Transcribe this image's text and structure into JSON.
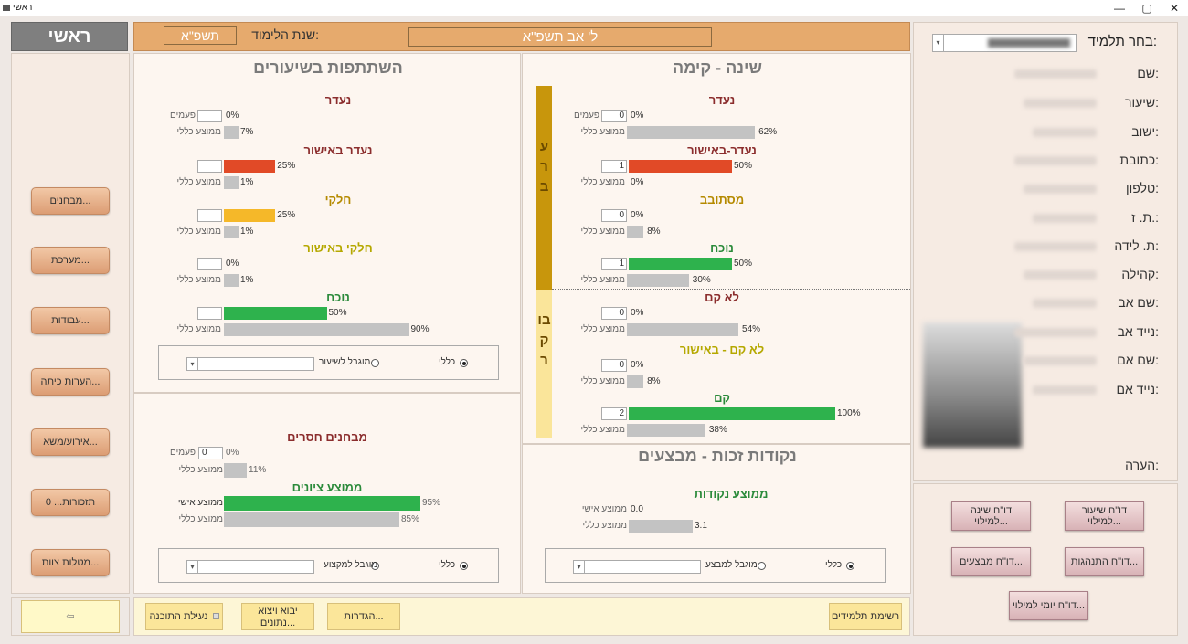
{
  "window": {
    "title": "ראשי",
    "min": "—",
    "max": "▢",
    "close": "✕"
  },
  "top": {
    "home": "ראשי",
    "year_label": "שנת הלימוד:",
    "year_value": "תשפ\"א",
    "date": "ל' אב תשפ\"א"
  },
  "student": {
    "select_label": "בחר תלמיד:",
    "fields": [
      "שם:",
      "שיעור:",
      "ישוב:",
      "כתובת:",
      "טלפון:",
      "ת. ז.:",
      "ת. לידה:",
      "קהילה:",
      "שם אב:",
      "נייד אב:",
      "שם אם:",
      "נייד אם:"
    ],
    "note_label": "הערה:"
  },
  "sleep": {
    "title": "שינה - קימה",
    "evening": "ערב",
    "morning": "בוקר",
    "rows": [
      {
        "label": "נעדר",
        "color": "#8b2d2d",
        "count": "0",
        "pct": "0%",
        "small1": "פעמים",
        "avg": "62%",
        "small2": "ממוצע כללי",
        "fill": 0,
        "avgfill": 62,
        "bar": "red"
      },
      {
        "label": "נעדר-באישור",
        "color": "#8b2d2d",
        "count": "1",
        "pct": "50%",
        "avg": "0%",
        "small2": "ממוצע כללי",
        "fill": 50,
        "avgfill": 0,
        "bar": "red"
      },
      {
        "label": "מסתובב",
        "color": "#b58a00",
        "count": "0",
        "pct": "0%",
        "avg": "8%",
        "small2": "ממוצע כללי",
        "fill": 0,
        "avgfill": 8,
        "bar": "yel"
      },
      {
        "label": "נוכח",
        "color": "#2a8a3a",
        "count": "1",
        "pct": "50%",
        "avg": "30%",
        "small2": "ממוצע כללי",
        "fill": 50,
        "avgfill": 30,
        "bar": "grn"
      },
      {
        "label": "לא קם",
        "color": "#8b2d2d",
        "count": "0",
        "pct": "0%",
        "avg": "54%",
        "small2": "ממוצע כללי",
        "fill": 0,
        "avgfill": 54,
        "bar": "red"
      },
      {
        "label": "לא קם - באישור",
        "color": "#b5a800",
        "count": "0",
        "pct": "0%",
        "avg": "8%",
        "small2": "ממוצע כללי",
        "fill": 0,
        "avgfill": 8,
        "bar": "yel"
      },
      {
        "label": "קם",
        "color": "#2a8a3a",
        "count": "2",
        "pct": "100%",
        "avg": "38%",
        "small2": "ממוצע כללי",
        "fill": 100,
        "avgfill": 38,
        "bar": "grn"
      }
    ]
  },
  "lessons": {
    "title": "השתתפות בשיעורים",
    "rows": [
      {
        "label": "נעדר",
        "color": "#8b2d2d",
        "pct": "0%",
        "small1": "פעמים",
        "avg": "7%",
        "small2": "ממוצע כללי",
        "fill": 0,
        "avgfill": 7,
        "bar": "red"
      },
      {
        "label": "נעדר באישור",
        "color": "#8b2d2d",
        "pct": "25%",
        "avg": "1%",
        "small2": "ממוצע כללי",
        "fill": 25,
        "avgfill": 1,
        "bar": "red"
      },
      {
        "label": "חלקי",
        "color": "#b58a00",
        "pct": "25%",
        "avg": "1%",
        "small2": "ממוצע כללי",
        "fill": 25,
        "avgfill": 1,
        "bar": "yel"
      },
      {
        "label": "חלקי באישור",
        "color": "#b5a800",
        "pct": "0%",
        "avg": "1%",
        "small2": "ממוצע כללי",
        "fill": 0,
        "avgfill": 1,
        "bar": "yel"
      },
      {
        "label": "נוכח",
        "color": "#2a8a3a",
        "pct": "50%",
        "avg": "90%",
        "small2": "ממוצע כללי",
        "fill": 50,
        "avgfill": 90,
        "bar": "grn"
      }
    ],
    "filter": {
      "general": "כללי",
      "limited": "מוגבל לשיעור"
    }
  },
  "exams": {
    "missing": "מבחנים חסרים",
    "count": "0",
    "pct": "0%",
    "small1": "פעמים",
    "avg": "11%",
    "small2": "ממוצע כללי",
    "avg_grades": "ממוצע ציונים",
    "personal_avg": "ממוצע אישי",
    "personal": "95%",
    "general": "85%",
    "filter": {
      "general": "כללי",
      "limited": "מוגבל למקצוע"
    }
  },
  "merits": {
    "title": "נקודות זכות - מבצעים",
    "avg_points": "ממוצע נקודות",
    "personal_label": "ממוצע אישי",
    "personal": "0.0",
    "general_label": "ממוצע כללי",
    "general": "3.1",
    "filter": {
      "general": "כללי",
      "limited": "מוגבל למבצע"
    }
  },
  "side_buttons": [
    "מבחנים...",
    "מערכת...",
    "עבודות...",
    "הערות כיתה...",
    "אירוע/משא...",
    "תזכורות... 0",
    "מטלות צוות..."
  ],
  "bottom": {
    "students": "רשימת תלמידים",
    "settings": "הגדרות...",
    "import": "יבוא ויצוא נתונים...",
    "lock": "נעילת התוכנה"
  },
  "reports": {
    "lesson": "דו\"ח שיעור למילוי...",
    "sleep": "דו\"ח שינה למילוי...",
    "behavior": "דו\"ח התנהגות...",
    "campaigns": "דו\"ח מבצעים...",
    "daily": "דו\"ח יומי למילוי..."
  }
}
